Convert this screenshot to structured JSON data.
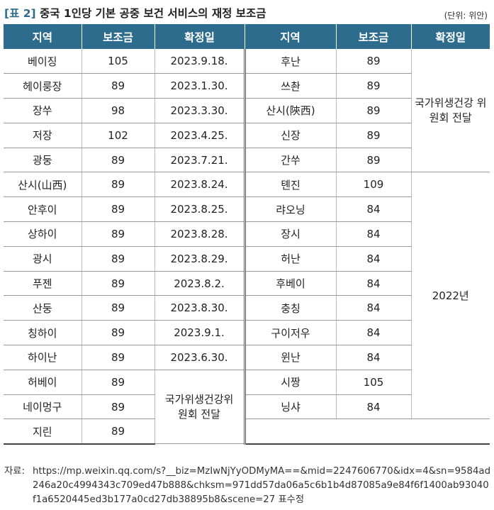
{
  "title": {
    "tag": "[표 2]",
    "text": "중국 1인당 기본 공중 보건 서비스의 재정 보조금",
    "unit": "(단위: 위안)"
  },
  "headers": [
    "지역",
    "보조금",
    "확정일",
    "지역",
    "보조금",
    "확정일"
  ],
  "left_rows": [
    {
      "region": "베이징",
      "subsidy": "105",
      "date": "2023.9.18."
    },
    {
      "region": "헤이룽장",
      "subsidy": "89",
      "date": "2023.1.30."
    },
    {
      "region": "장쑤",
      "subsidy": "98",
      "date": "2023.3.30."
    },
    {
      "region": "저장",
      "subsidy": "102",
      "date": "2023.4.25."
    },
    {
      "region": "광둥",
      "subsidy": "89",
      "date": "2023.7.21."
    },
    {
      "region": "산시(山西)",
      "subsidy": "89",
      "date": "2023.8.24."
    },
    {
      "region": "안후이",
      "subsidy": "89",
      "date": "2023.8.25."
    },
    {
      "region": "상하이",
      "subsidy": "89",
      "date": "2023.8.28."
    },
    {
      "region": "광시",
      "subsidy": "89",
      "date": "2023.8.29."
    },
    {
      "region": "푸젠",
      "subsidy": "89",
      "date": "2023.8.2."
    },
    {
      "region": "산둥",
      "subsidy": "89",
      "date": "2023.8.30."
    },
    {
      "region": "칭하이",
      "subsidy": "89",
      "date": "2023.9.1."
    },
    {
      "region": "하이난",
      "subsidy": "89",
      "date": "2023.6.30."
    },
    {
      "region": "허베이",
      "subsidy": "89"
    },
    {
      "region": "네이멍구",
      "subsidy": "89"
    },
    {
      "region": "지린",
      "subsidy": "89"
    }
  ],
  "left_merged_date": "국가위생건강위원회 전달",
  "right_rows": [
    {
      "region": "후난",
      "subsidy": "89"
    },
    {
      "region": "쓰촨",
      "subsidy": "89"
    },
    {
      "region": "산시(陝西)",
      "subsidy": "89"
    },
    {
      "region": "신장",
      "subsidy": "89"
    },
    {
      "region": "간쑤",
      "subsidy": "89"
    },
    {
      "region": "톈진",
      "subsidy": "109"
    },
    {
      "region": "랴오닝",
      "subsidy": "84"
    },
    {
      "region": "장시",
      "subsidy": "84"
    },
    {
      "region": "허난",
      "subsidy": "84"
    },
    {
      "region": "후베이",
      "subsidy": "84"
    },
    {
      "region": "충칭",
      "subsidy": "84"
    },
    {
      "region": "구이저우",
      "subsidy": "84"
    },
    {
      "region": "윈난",
      "subsidy": "84"
    },
    {
      "region": "시짱",
      "subsidy": "105"
    },
    {
      "region": "닝샤",
      "subsidy": "84"
    }
  ],
  "right_merged_date_1": "국가위생건강 위원회 전달",
  "right_merged_date_2": "2022년",
  "source": {
    "label": "자료:",
    "text": "https://mp.weixin.qq.com/s?__biz=MzIwNjYyODMyMA==&mid=2247606770&idx=4&sn=9584ad246a20c4994343c709ed47b888&chksm=971dd57da06a5c6b1b4d87085a9e84f6f1400ab93040f1a6520445ed3b177a0cd27db38895b8&scene=27 표수정"
  }
}
